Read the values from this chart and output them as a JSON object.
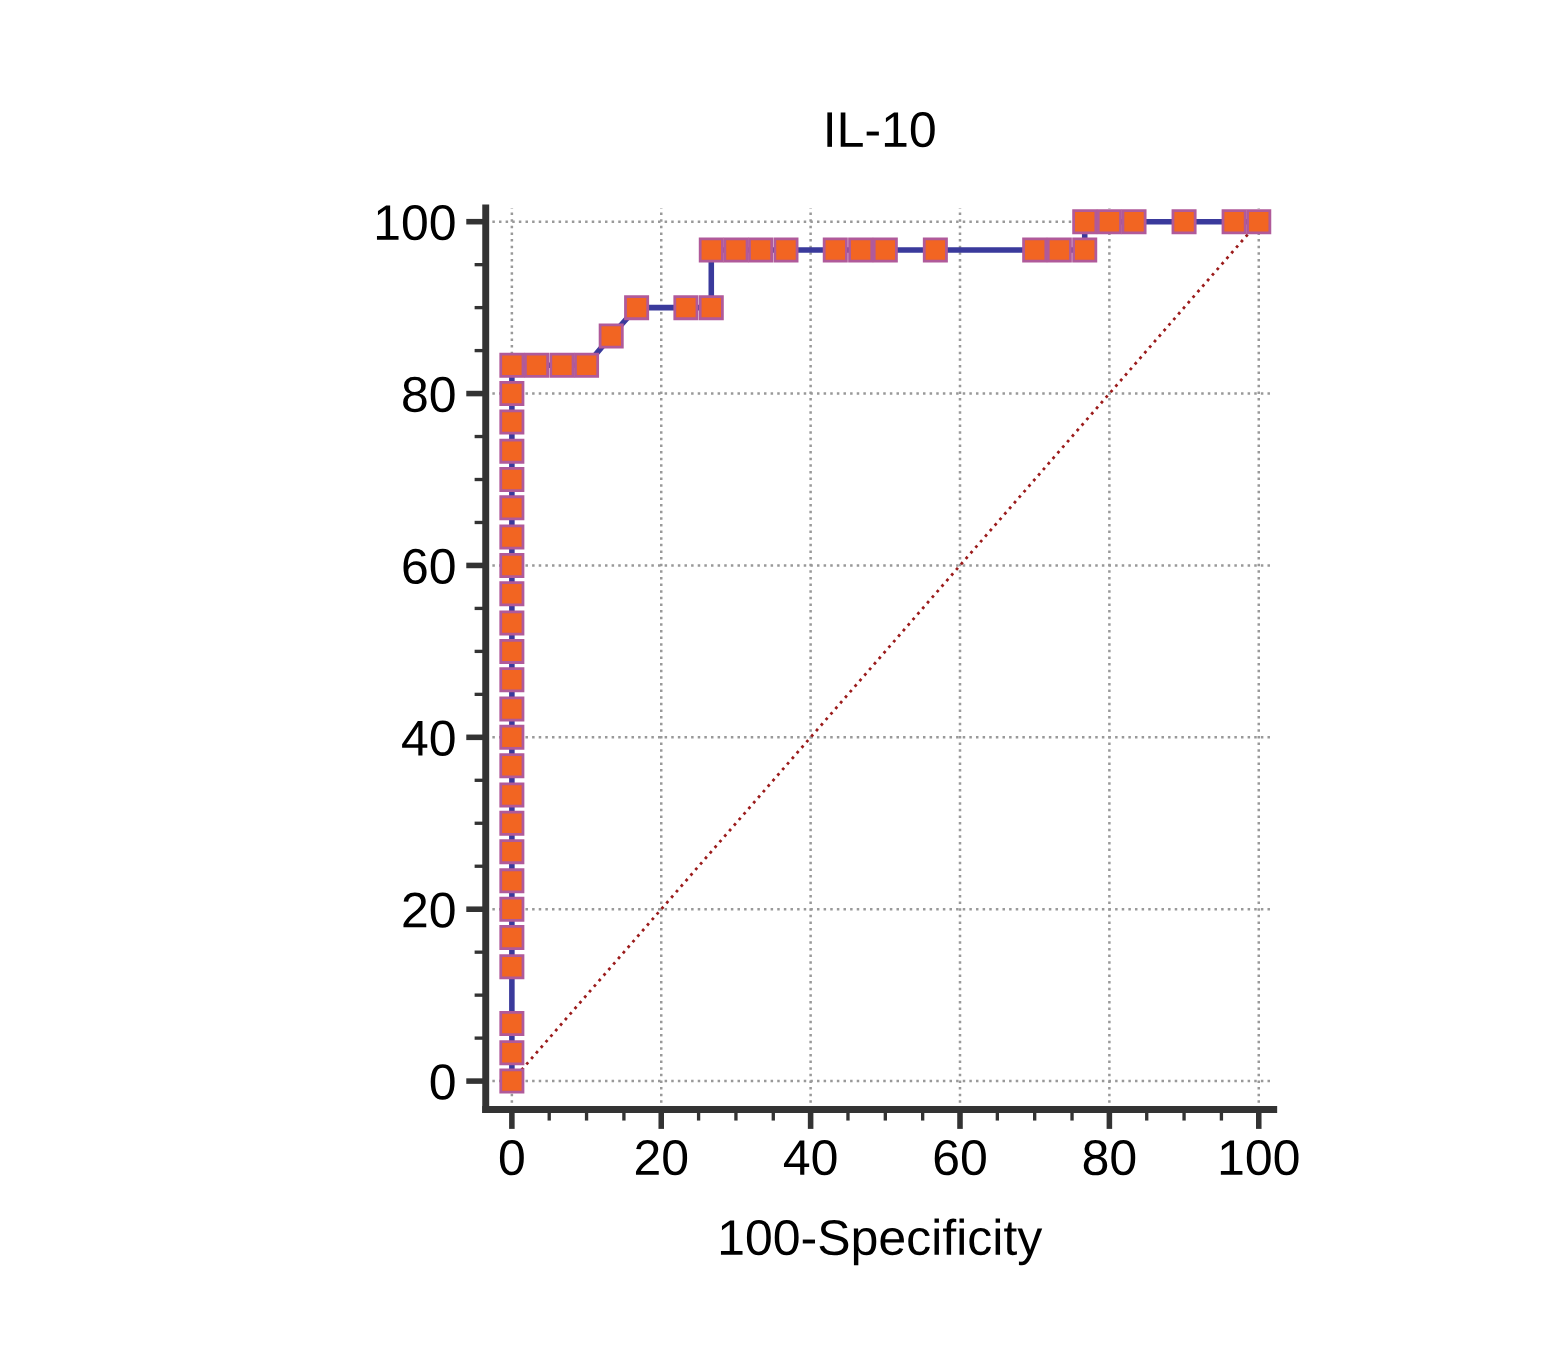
{
  "chart_data": {
    "type": "line",
    "title": "IL-10",
    "xlabel": "100-Specificity",
    "series": [
      {
        "color": "#f26522",
        "marker": "square",
        "line_style": "solid",
        "x": [
          0,
          0,
          0,
          0,
          0,
          0,
          0,
          0,
          0,
          0,
          0,
          0,
          0,
          0,
          0,
          0,
          0,
          0,
          0,
          0,
          0,
          0,
          0,
          0,
          0,
          3.3,
          6.7,
          10,
          13.3,
          16.7,
          23.3,
          26.7,
          26.7,
          30,
          33.3,
          36.7,
          43.3,
          46.7,
          50,
          56.7,
          70,
          73.3,
          76.7,
          76.7,
          80,
          83.3,
          90,
          96.7,
          100
        ],
        "values": [
          0,
          3.3,
          6.7,
          13.3,
          16.7,
          20,
          23.3,
          26.7,
          30,
          33.3,
          36.7,
          40,
          43.3,
          46.7,
          50,
          53.3,
          56.7,
          60,
          63.3,
          66.7,
          70,
          73.3,
          76.7,
          80,
          83.3,
          83.3,
          83.3,
          83.3,
          86.7,
          90,
          90,
          90,
          96.7,
          96.7,
          96.7,
          96.7,
          96.7,
          96.7,
          96.7,
          96.7,
          96.7,
          96.7,
          96.7,
          100,
          100,
          100,
          100,
          100,
          100
        ]
      },
      {
        "color": "#9b1b1b",
        "marker": "none",
        "line_style": "dotted",
        "x": [
          0,
          100
        ],
        "values": [
          0,
          100
        ]
      }
    ],
    "xlim": [
      -3.5,
      102
    ],
    "ylim": [
      -3.3,
      101.6
    ],
    "xticks": [
      0,
      {
        "value": 5,
        "label": null
      },
      {
        "value": 10,
        "label": null
      },
      {
        "value": 15,
        "label": null
      },
      20,
      {
        "value": 25,
        "label": null
      },
      {
        "value": 30,
        "label": null
      },
      {
        "value": 35,
        "label": null
      },
      40,
      {
        "value": 45,
        "label": null
      },
      {
        "value": 50,
        "label": null
      },
      {
        "value": 55,
        "label": null
      },
      60,
      {
        "value": 65,
        "label": null
      },
      {
        "value": 70,
        "label": null
      },
      {
        "value": 75,
        "label": null
      },
      80,
      {
        "value": 85,
        "label": null
      },
      {
        "value": 90,
        "label": null
      },
      {
        "value": 95,
        "label": null
      },
      100
    ],
    "yticks": [
      0,
      {
        "value": 5,
        "label": null
      },
      {
        "value": 10,
        "label": null
      },
      {
        "value": 15,
        "label": null
      },
      20,
      {
        "value": 25,
        "label": null
      },
      {
        "value": 30,
        "label": null
      },
      {
        "value": 35,
        "label": null
      },
      40,
      {
        "value": 45,
        "label": null
      },
      {
        "value": 50,
        "label": null
      },
      {
        "value": 55,
        "label": null
      },
      60,
      {
        "value": 65,
        "label": null
      },
      {
        "value": 70,
        "label": null
      },
      {
        "value": 75,
        "label": null
      },
      80,
      {
        "value": 85,
        "label": null
      },
      {
        "value": 90,
        "label": null
      },
      {
        "value": 95,
        "label": null
      },
      100
    ],
    "grid": true
  }
}
